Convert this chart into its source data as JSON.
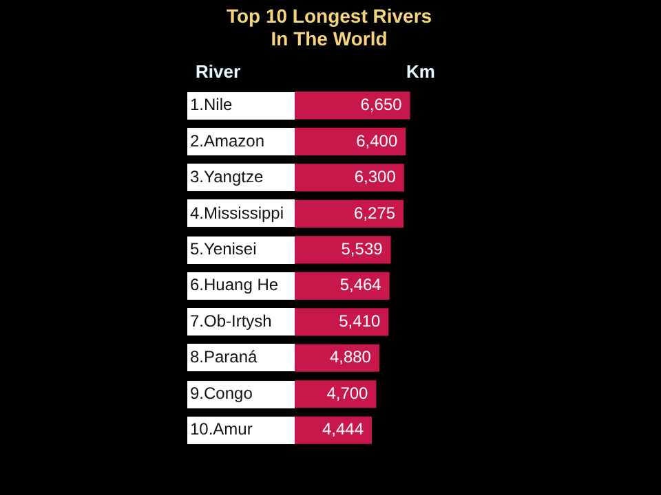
{
  "chart_data": {
    "type": "bar",
    "orientation": "horizontal",
    "title": [
      "Top 10 Longest Rivers",
      "In The World"
    ],
    "ylabel": "River",
    "xlabel": "Km",
    "categories": [
      "1.Nile",
      "2.Amazon",
      "3.Yangtze",
      "4.Mississippi",
      "5.Yenisei",
      "6.Huang He",
      "7.Ob-Irtysh",
      "8.Paraná",
      "9.Congo",
      "10.Amur"
    ],
    "values": [
      6650,
      6400,
      6300,
      6275,
      5539,
      5464,
      5410,
      4880,
      4700,
      4444
    ],
    "value_labels": [
      "6,650",
      "6,400",
      "6,300",
      "6,275",
      "5,539",
      "5,464",
      "5,410",
      "4,880",
      "4,700",
      "4,444"
    ],
    "color": "#c8174a",
    "tick_labels": "y"
  }
}
